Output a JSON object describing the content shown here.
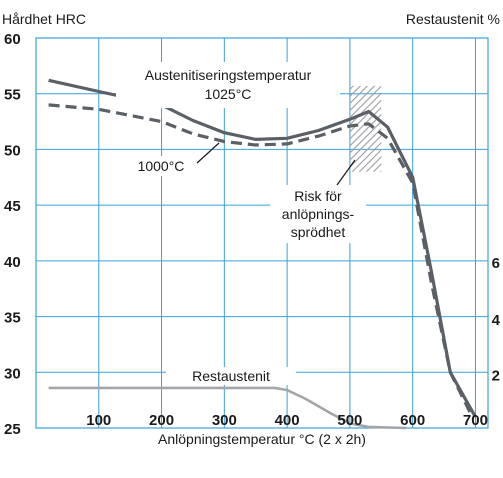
{
  "chart_data": {
    "type": "line",
    "title": "",
    "xlabel": "Anlöpningstemperatur °C (2 x 2h)",
    "ylabel_left": "Hårdhet HRC",
    "ylabel_right": "Restaustenit %",
    "xlim": [
      0,
      720
    ],
    "ylim_left": [
      25,
      60
    ],
    "x_ticks": [
      "100",
      "200",
      "300",
      "400",
      "500",
      "600",
      "700"
    ],
    "y_ticks_left": [
      "25",
      "30",
      "35",
      "40",
      "45",
      "50",
      "55",
      "60"
    ],
    "y_ticks_right": [
      "2",
      "4",
      "6"
    ],
    "grid": true,
    "colors": {
      "grid": "#3aa0db",
      "main": "#5b5f66",
      "restaustenit": "#a3a5a8",
      "hatch": "#9a9da2"
    },
    "annotations": {
      "austenit_line1": "Austenitiseringstemperatur",
      "austenit_line2": "1025°C",
      "t1000": "1000°C",
      "risk_line1": "Risk för",
      "risk_line2": "anlöpnings-",
      "risk_line3": "sprödhet",
      "restaustenit": "Restaustenit"
    },
    "risk_zone_x": [
      500,
      550
    ],
    "series": [
      {
        "name": "1025°C",
        "style": "solid",
        "x": [
          20,
          100,
          200,
          250,
          300,
          350,
          400,
          450,
          500,
          530,
          560,
          600,
          630,
          660,
          700
        ],
        "y": [
          56.2,
          55.2,
          54.0,
          52.6,
          51.5,
          50.9,
          51.0,
          51.7,
          52.7,
          53.4,
          52.0,
          47.5,
          39.0,
          30.0,
          26.0
        ]
      },
      {
        "name": "1000°C",
        "style": "dashed",
        "x": [
          20,
          100,
          200,
          250,
          300,
          350,
          400,
          450,
          500,
          530,
          560,
          600,
          630,
          660,
          695
        ],
        "y": [
          54.0,
          53.6,
          52.5,
          51.4,
          50.7,
          50.4,
          50.5,
          51.2,
          52.1,
          52.3,
          51.0,
          47.0,
          38.0,
          30.0,
          26.0
        ]
      },
      {
        "name": "Restaustenit",
        "style": "solid",
        "x": [
          20,
          100,
          200,
          300,
          380,
          400,
          430,
          470,
          500,
          530,
          590
        ],
        "y": [
          28.6,
          28.6,
          28.6,
          28.6,
          28.6,
          28.4,
          27.6,
          26.3,
          25.4,
          25.1,
          25.0
        ]
      }
    ]
  }
}
